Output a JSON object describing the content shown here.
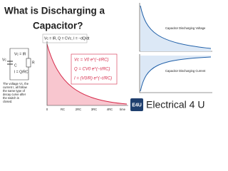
{
  "title": [
    "What is Discharging a",
    "Capacitor?"
  ],
  "circuit": {
    "vc": "Vc",
    "c": "C",
    "r": "R",
    "equations": [
      "Vc = IR",
      "I = Q/RC"
    ]
  },
  "note": [
    "The voltage Vc, the",
    "current I, all follow",
    "the same type of",
    "decay curve after",
    "the switch is",
    "closed."
  ],
  "decay_chart": {
    "top_formula": "Vc = IR, Q = CVc, I = −dQ/dt",
    "formulas": [
      "Vc = V0 e^(−t/RC)",
      "Q = CV0 e^(−t/RC)",
      "I = (V0/R) e^(−t/RC)"
    ],
    "x_labels": [
      "0",
      "RC",
      "2RC",
      "3RC",
      "4RC",
      "time"
    ]
  },
  "right_charts": [
    "Capacitor Discharging Voltage",
    "Capacitor Discharging Current"
  ],
  "logo": {
    "mark": "E4U",
    "text": "Electrical 4 U"
  }
}
